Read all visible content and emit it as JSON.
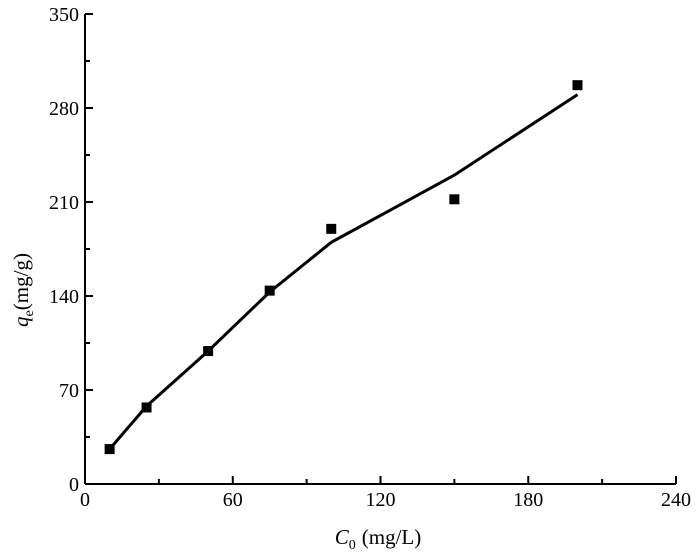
{
  "chart_data": {
    "type": "scatter",
    "xlabel": {
      "symbol": "C",
      "subscript": "0",
      "unit": "(mg/L)"
    },
    "ylabel": {
      "symbol": "q",
      "subscript": "e",
      "unit": "(mg/g)"
    },
    "xlim": [
      0,
      240
    ],
    "ylim": [
      0,
      350
    ],
    "xticks": [
      0,
      60,
      120,
      180,
      240
    ],
    "yticks": [
      0,
      70,
      140,
      210,
      280,
      350
    ],
    "grid": false,
    "series": [
      {
        "kind": "scatter",
        "marker": "square",
        "x": [
          10,
          25,
          50,
          75,
          100,
          150,
          200
        ],
        "y": [
          26,
          57,
          99,
          144,
          190,
          212,
          297
        ]
      },
      {
        "kind": "line",
        "x": [
          10,
          25,
          50,
          75,
          100,
          150,
          200
        ],
        "y": [
          26,
          58,
          99,
          143,
          180,
          230,
          290
        ]
      }
    ]
  }
}
